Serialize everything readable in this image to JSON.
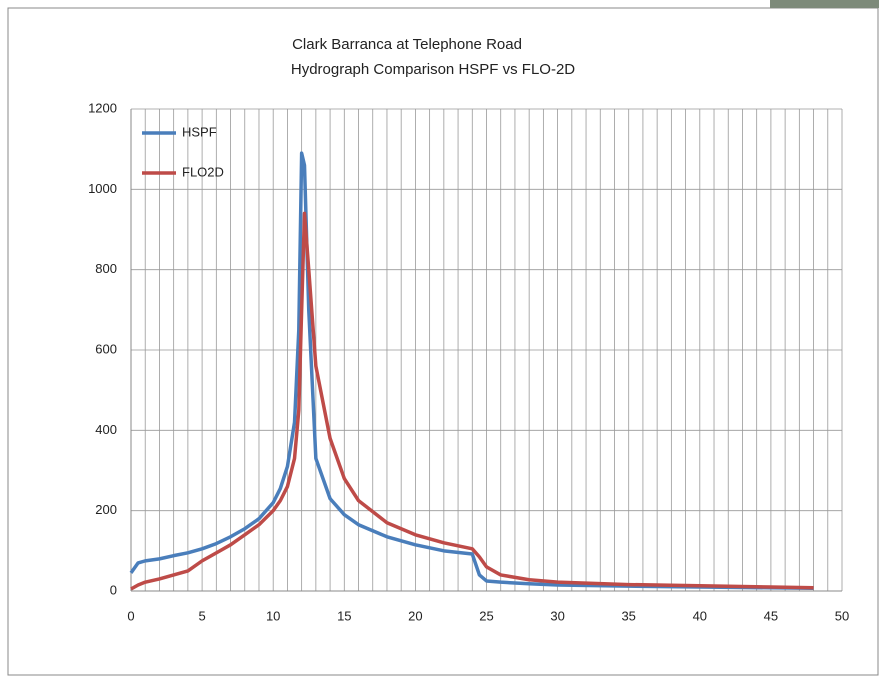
{
  "chart_data": {
    "type": "line",
    "title": "Clark Barranca at Telephone Road",
    "subtitle": "Hydrograph Comparison HSPF vs FLO-2D",
    "x": [
      0,
      0.5,
      1,
      2,
      3,
      4,
      5,
      6,
      7,
      8,
      9,
      10,
      10.5,
      11,
      11.5,
      11.8,
      12,
      12.2,
      12.5,
      13,
      14,
      15,
      16,
      18,
      20,
      22,
      24,
      24.5,
      25,
      26,
      28,
      30,
      35,
      40,
      45,
      48
    ],
    "series": [
      {
        "name": "HSPF",
        "color": "#4a7ebb",
        "values": [
          45,
          70,
          75,
          80,
          88,
          95,
          105,
          118,
          135,
          155,
          180,
          220,
          255,
          310,
          420,
          650,
          1090,
          1060,
          700,
          330,
          230,
          190,
          165,
          135,
          115,
          100,
          92,
          40,
          25,
          22,
          18,
          15,
          12,
          10,
          8,
          7
        ]
      },
      {
        "name": "FLO2D",
        "color": "#be4b48",
        "values": [
          5,
          15,
          22,
          30,
          40,
          50,
          75,
          95,
          115,
          140,
          165,
          200,
          225,
          260,
          330,
          450,
          700,
          940,
          800,
          560,
          380,
          280,
          225,
          170,
          140,
          120,
          105,
          85,
          60,
          40,
          28,
          22,
          16,
          13,
          10,
          8
        ]
      }
    ],
    "xlim": [
      0,
      50
    ],
    "xticks": [
      0,
      5,
      10,
      15,
      20,
      25,
      30,
      35,
      40,
      45,
      50
    ],
    "ylim": [
      0,
      1200
    ],
    "yticks": [
      0,
      200,
      400,
      600,
      800,
      1000,
      1200
    ],
    "grid": true,
    "legend": "upper-left"
  }
}
